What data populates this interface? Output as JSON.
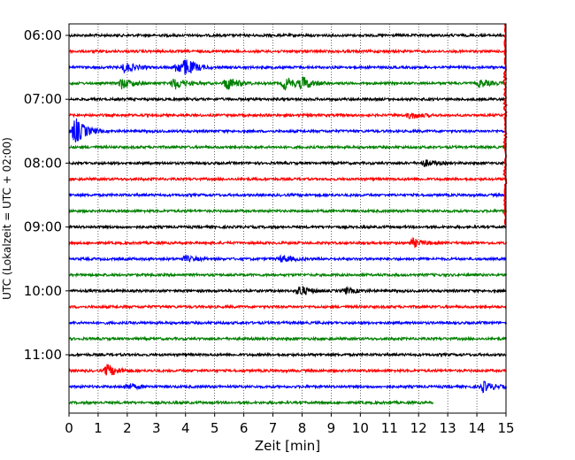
{
  "chart_data": {
    "type": "line",
    "xlabel": "Zeit  [min]",
    "ylabel": "UTC (Lokalzeit = UTC + 02:00)",
    "xlim": [
      0,
      15
    ],
    "x_ticks": [
      "0",
      "1",
      "2",
      "3",
      "4",
      "5",
      "6",
      "7",
      "8",
      "9",
      "10",
      "11",
      "12",
      "13",
      "14",
      "15"
    ],
    "y_ticks": [
      "06:00",
      "07:00",
      "08:00",
      "09:00",
      "10:00",
      "11:00"
    ],
    "grid": "vertical-dotted",
    "colors": [
      "#000000",
      "#ff0000",
      "#0000ff",
      "#008000"
    ],
    "traces_per_hour": 4,
    "trace_start_utc": "06:00",
    "trace_interval_min": 15,
    "trace_count": 24,
    "last_trace_end_min": 12.5,
    "events": [
      {
        "trace": 2,
        "min": 1.9,
        "amp": 2.0
      },
      {
        "trace": 2,
        "min": 3.7,
        "amp": 2.2
      },
      {
        "trace": 2,
        "min": 4.0,
        "amp": 2.4
      },
      {
        "trace": 3,
        "min": 1.8,
        "amp": 2.0
      },
      {
        "trace": 3,
        "min": 3.6,
        "amp": 2.3
      },
      {
        "trace": 3,
        "min": 5.4,
        "amp": 2.5
      },
      {
        "trace": 3,
        "min": 7.4,
        "amp": 2.4
      },
      {
        "trace": 3,
        "min": 8.0,
        "amp": 2.2
      },
      {
        "trace": 3,
        "min": 14.1,
        "amp": 1.4
      },
      {
        "trace": 5,
        "min": 11.7,
        "amp": 1.2
      },
      {
        "trace": 6,
        "min": 0.2,
        "amp": 5.0
      },
      {
        "trace": 8,
        "min": 12.2,
        "amp": 1.2
      },
      {
        "trace": 13,
        "min": 11.8,
        "amp": 1.5
      },
      {
        "trace": 14,
        "min": 4.0,
        "amp": 1.0
      },
      {
        "trace": 14,
        "min": 7.3,
        "amp": 1.3
      },
      {
        "trace": 16,
        "min": 7.9,
        "amp": 1.9
      },
      {
        "trace": 16,
        "min": 9.5,
        "amp": 1.0
      },
      {
        "trace": 21,
        "min": 1.3,
        "amp": 2.3
      },
      {
        "trace": 22,
        "min": 2.0,
        "amp": 1.1
      },
      {
        "trace": 22,
        "min": 14.2,
        "amp": 2.0
      }
    ],
    "vertical_spike": {
      "color": "#ff0000",
      "min": 15.0
    }
  }
}
